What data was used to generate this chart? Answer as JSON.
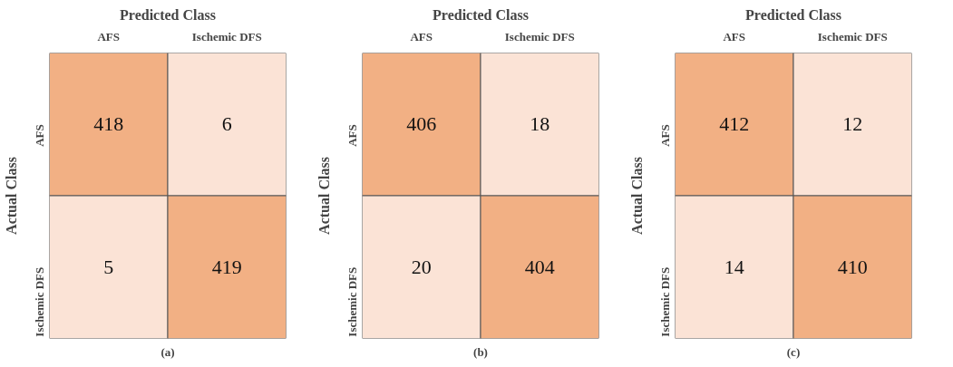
{
  "chart_data": [
    {
      "type": "heatmap",
      "title": "Predicted Class",
      "ylabel": "Actual Class",
      "categories": [
        "AFS",
        "Ischemic DFS"
      ],
      "y_categories": [
        "AFS",
        "Ischemic DFS"
      ],
      "cells": [
        [
          418,
          6
        ],
        [
          5,
          419
        ]
      ],
      "colors": [
        "#f2b084",
        "#fbe3d6",
        "#fbe3d6",
        "#f2b084"
      ],
      "data_labels": true,
      "annotations": [
        "(a)"
      ]
    },
    {
      "type": "heatmap",
      "title": "Predicted Class",
      "ylabel": "Actual Class",
      "categories": [
        "AFS",
        "Ischemic DFS"
      ],
      "y_categories": [
        "AFS",
        "Ischemic DFS"
      ],
      "cells": [
        [
          406,
          18
        ],
        [
          20,
          404
        ]
      ],
      "colors": [
        "#f2b084",
        "#fbe3d6",
        "#fbe3d6",
        "#f2b084"
      ],
      "data_labels": true,
      "annotations": [
        "(b)"
      ]
    },
    {
      "type": "heatmap",
      "title": "Predicted Class",
      "ylabel": "Actual Class",
      "categories": [
        "AFS",
        "Ischemic DFS"
      ],
      "y_categories": [
        "AFS",
        "Ischemic DFS"
      ],
      "cells": [
        [
          412,
          12
        ],
        [
          14,
          410
        ]
      ],
      "colors": [
        "#f2b084",
        "#fbe3d6",
        "#fbe3d6",
        "#f2b084"
      ],
      "data_labels": true,
      "annotations": [
        "(c)"
      ]
    }
  ]
}
